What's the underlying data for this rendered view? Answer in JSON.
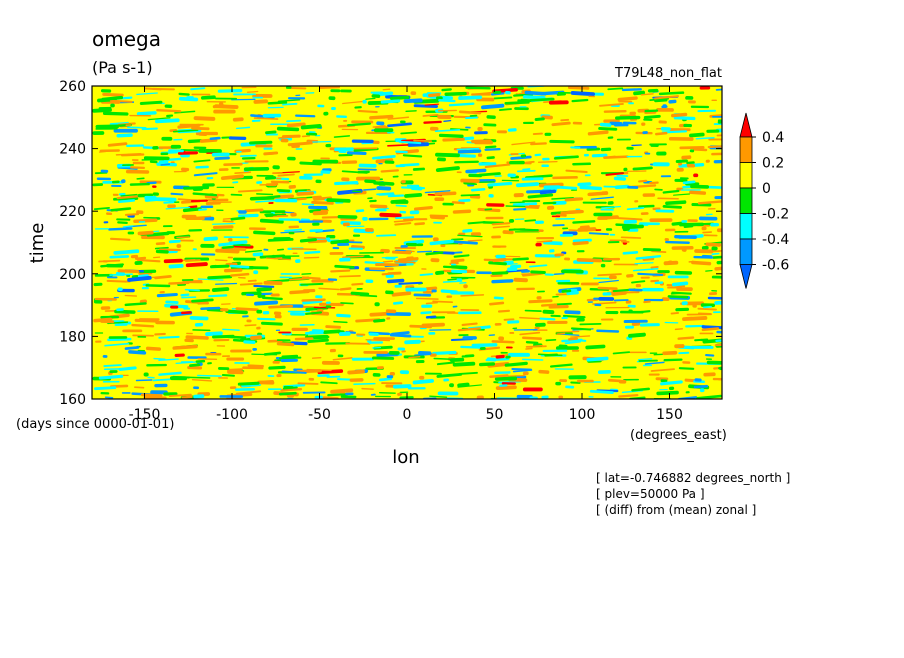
{
  "chart_data": {
    "type": "heatmap",
    "title": "omega",
    "units": "(Pa s-1)",
    "experiment": "T79L48_non_flat",
    "xlabel": "lon",
    "xunits": "(degrees_east)",
    "ylabel": "time",
    "yunits": "(days since 0000-01-01)",
    "xlim": [
      -180,
      180
    ],
    "ylim": [
      160,
      260
    ],
    "xticks": [
      "-150",
      "-100",
      "-50",
      "0",
      "50",
      "100",
      "150"
    ],
    "xtick_values": [
      -150,
      -100,
      -50,
      0,
      50,
      100,
      150
    ],
    "yticks": [
      "160",
      "180",
      "200",
      "220",
      "240",
      "260"
    ],
    "ytick_values": [
      160,
      180,
      200,
      220,
      240,
      260
    ],
    "colorbar": {
      "labels": [
        "0.4",
        "0.2",
        "0",
        "-0.2",
        "-0.4",
        "-0.6"
      ],
      "levels": [
        0.4,
        0.2,
        0,
        -0.2,
        -0.4,
        -0.6
      ],
      "colors": [
        "#ff0000",
        "#ff9900",
        "#ffff00",
        "#00e600",
        "#00ffff",
        "#0099ff",
        "#0066ff"
      ]
    },
    "notes": [
      "[ lat=-0.746882 degrees_north ]",
      "[ plev=50000 Pa ]",
      "[ (diff) from (mean) zonal ]"
    ]
  }
}
